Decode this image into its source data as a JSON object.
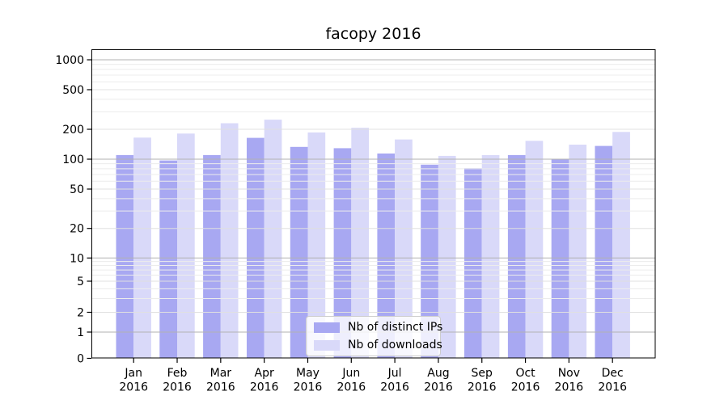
{
  "chart_data": {
    "type": "bar",
    "title": "facopy 2016",
    "categories": [
      "Jan 2016",
      "Feb 2016",
      "Mar 2016",
      "Apr 2016",
      "May 2016",
      "Jun 2016",
      "Jul 2016",
      "Aug 2016",
      "Sep 2016",
      "Oct 2016",
      "Nov 2016",
      "Dec 2016"
    ],
    "series": [
      {
        "name": "Nb of distinct IPs",
        "color": "#a8a8f2",
        "values": [
          110,
          97,
          110,
          164,
          133,
          129,
          114,
          88,
          81,
          110,
          101,
          136
        ]
      },
      {
        "name": "Nb of downloads",
        "color": "#d9d9f9",
        "values": [
          165,
          181,
          230,
          250,
          186,
          207,
          158,
          108,
          110,
          153,
          140,
          188
        ]
      }
    ],
    "yticks": [
      0,
      1,
      2,
      5,
      10,
      20,
      50,
      100,
      200,
      500,
      1000
    ],
    "xlabel": "",
    "ylabel": "",
    "ylim": [
      0,
      1280
    ],
    "scale": "symlog",
    "grid": true,
    "legend_position": "lower center",
    "colors": {
      "major_grid": "#b2b2b2",
      "labeled_grid": "#e0e0e0",
      "minor_grid": "#ececec",
      "axis": "#000000"
    }
  }
}
